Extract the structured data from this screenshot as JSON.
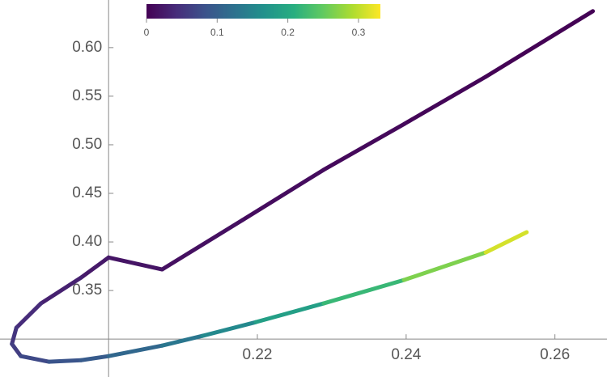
{
  "chart_data": {
    "type": "line",
    "x": [
      0.2651,
      0.2507,
      0.2398,
      0.2289,
      0.218,
      0.2072,
      0.2,
      0.1963,
      0.1909,
      0.1876,
      0.187,
      0.1882,
      0.192,
      0.1963,
      0.2,
      0.2072,
      0.2126,
      0.2198,
      0.2289,
      0.2397,
      0.2507,
      0.2562
    ],
    "series": [
      {
        "values": [
          0.6375,
          0.57,
          0.5217,
          0.4742,
          0.4225,
          0.3717,
          0.384,
          0.3633,
          0.3367,
          0.3117,
          0.295,
          0.2825,
          0.2767,
          0.2783,
          0.2825,
          0.2933,
          0.3033,
          0.3175,
          0.3367,
          0.3608,
          0.3892,
          0.41
        ],
        "c": [
          0,
          0.003,
          0.006,
          0.009,
          0.012,
          0.016,
          0.02,
          0.025,
          0.035,
          0.045,
          0.055,
          0.065,
          0.08,
          0.09,
          0.1,
          0.12,
          0.14,
          0.17,
          0.2,
          0.24,
          0.29,
          0.33
        ]
      }
    ],
    "xlim": [
      0.1854,
      0.267
    ],
    "ylim": [
      0.261,
      0.649
    ],
    "axes_origin": [
      0.2,
      0.3
    ],
    "xticks": [
      0.22,
      0.24,
      0.26
    ],
    "yticks": [
      0.35,
      {
        "value": 0.4,
        "label": "0.40"
      },
      0.45,
      {
        "value": 0.5,
        "label": "0.50"
      },
      0.55,
      {
        "value": 0.6,
        "label": "0.60"
      }
    ],
    "colorbar": {
      "clim": [
        0,
        0.331
      ],
      "ticks": [
        0,
        0.1,
        0.2,
        0.3
      ]
    }
  }
}
